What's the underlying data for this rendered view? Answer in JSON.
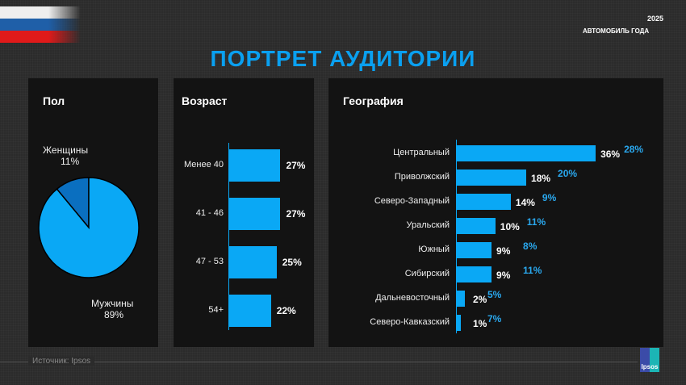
{
  "header": {
    "title": "ПОРТРЕТ АУДИТОРИИ",
    "logo_year": "2025",
    "logo_name": "АВТОМОБИЛЬ ГОДА"
  },
  "footer": {
    "source": "Источник: Ipsos",
    "ipsos_logo": "Ipsos"
  },
  "colors": {
    "accent": "#0aa8f5",
    "secondary": "#0a6fc0",
    "background": "#2b2b2b",
    "panel": "#131313"
  },
  "chart_data": [
    {
      "type": "pie",
      "title": "Пол",
      "slices": [
        {
          "label": "Женщины",
          "value": 11,
          "display": "11%",
          "color": "#0a6fc0"
        },
        {
          "label": "Мужчины",
          "value": 89,
          "display": "89%",
          "color": "#0aa8f5"
        }
      ]
    },
    {
      "type": "bar",
      "orientation": "horizontal",
      "title": "Возраст",
      "categories": [
        "Менее 40",
        "41 - 46",
        "47 - 53",
        "54+"
      ],
      "values": [
        27,
        27,
        25,
        22
      ],
      "labels": [
        "27%",
        "27%",
        "25%",
        "22%"
      ]
    },
    {
      "type": "bar",
      "orientation": "horizontal",
      "title": "География",
      "categories": [
        "Центральный",
        "Приволжский",
        "Северо-Западный",
        "Уральский",
        "Южный",
        "Сибирский",
        "Дальневосточный",
        "Северо-Кавказский"
      ],
      "series": [
        {
          "values": [
            36,
            18,
            14,
            10,
            9,
            9,
            2,
            1
          ],
          "labels": [
            "36%",
            "18%",
            "14%",
            "10%",
            "9%",
            "9%",
            "2%",
            "1%"
          ]
        },
        {
          "values": [
            28,
            20,
            9,
            11,
            8,
            11,
            5,
            7
          ],
          "labels": [
            "28%",
            "20%",
            "9%",
            "11%",
            "8%",
            "11%",
            "5%",
            "7%"
          ]
        }
      ]
    }
  ]
}
